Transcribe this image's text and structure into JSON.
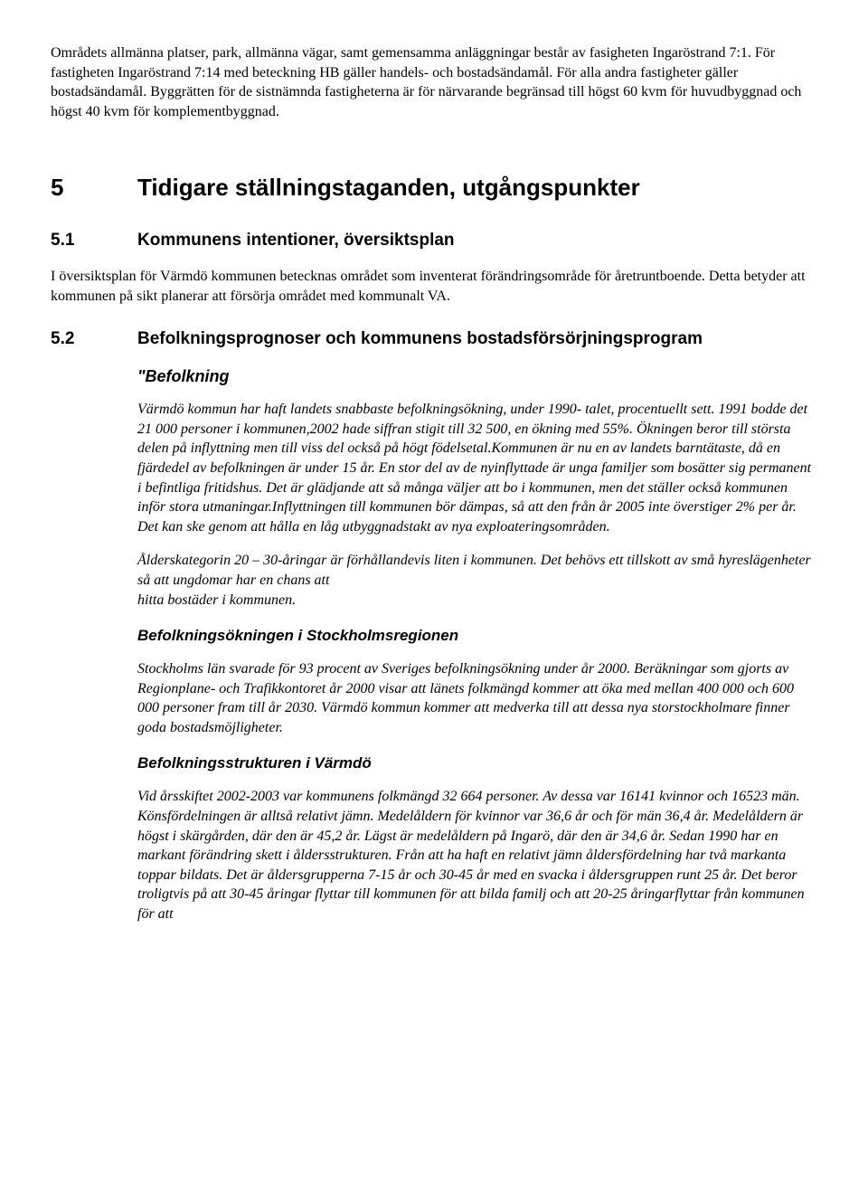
{
  "intro": "Områdets allmänna platser, park, allmänna vägar, samt gemensamma anläggningar består av fasigheten Ingaröstrand 7:1. För fastigheten Ingaröstrand 7:14 med beteckning HB gäller handels- och bostadsändamål. För alla andra fastigheter gäller bostadsändamål. Byggrätten för de sistnämnda fastigheterna är för närvarande begränsad till högst 60 kvm för huvudbyggnad och högst 40 kvm för komplementbyggnad.",
  "sec5": {
    "num": "5",
    "title": "Tidigare ställningstaganden, utgångspunkter"
  },
  "sec5_1": {
    "num": "5.1",
    "title": "Kommunens intentioner, översiktsplan",
    "body": "I översiktsplan för Värmdö kommunen betecknas området som inventerat förändringsområde för åretruntboende. Detta betyder att kommunen på sikt planerar att försörja området med kommunalt VA."
  },
  "sec5_2": {
    "num": "5.2",
    "title": "Befolkningsprognoser och kommunens bostadsförsörjningsprogram",
    "sub1_title": "\"Befolkning",
    "sub1_p1": "Värmdö kommun har haft landets snabbaste befolkningsökning, under 1990- talet, procentuellt sett. 1991 bodde det 21 000 personer i kommunen,2002 hade siffran stigit till 32 500, en ökning med 55%. Ökningen beror till största delen på inflyttning men till viss del också på högt födelsetal.Kommunen är nu en av landets barntätaste, då en fjärdedel av befolkningen är under 15 år. En stor del av de nyinflyttade är unga familjer som bosätter sig permanent i befintliga fritidshus. Det är glädjande att så många väljer att bo i kommunen, men det ställer också kommunen inför stora utmaningar.Inflyttningen till kommunen bör dämpas, så att den från år 2005 inte överstiger 2% per år. Det kan ske genom att hålla en låg utbyggnadstakt av nya exploateringsområden.",
    "sub1_p2": "Ålderskategorin 20 – 30-åringar är förhållandevis liten i kommunen. Det behövs ett tillskott av små hyreslägenheter så att ungdomar har en chans att\nhitta bostäder i kommunen.",
    "sub2_title": "Befolkningsökningen i Stockholmsregionen",
    "sub2_body": "Stockholms län svarade för 93 procent av Sveriges befolkningsökning under år 2000. Beräkningar som gjorts av Regionplane- och Trafikkontoret år 2000 visar att länets folkmängd kommer att öka med mellan 400 000 och 600 000 personer fram till år 2030. Värmdö kommun kommer att medverka till att dessa nya storstockholmare finner goda bostadsmöjligheter.",
    "sub3_title": "Befolkningsstrukturen i Värmdö",
    "sub3_body": "Vid årsskiftet 2002-2003 var kommunens folkmängd 32 664 personer. Av dessa var 16141 kvinnor och 16523 män. Könsfördelningen är alltså relativt jämn. Medelåldern för kvinnor var 36,6 år och för män 36,4 år. Medelåldern är högst i skärgården, där den är 45,2 år. Lägst är medelåldern på Ingarö, där den är 34,6 år. Sedan 1990 har en markant förändring skett i åldersstrukturen. Från att ha haft en relativt jämn åldersfördelning har två markanta toppar bildats. Det är åldersgrupperna 7-15 år och 30-45 år med en svacka i åldersgruppen runt 25 år. Det beror troligtvis på att 30-45 åringar flyttar till kommunen för att bilda familj och att 20-25 åringarflyttar från kommunen för att"
  }
}
